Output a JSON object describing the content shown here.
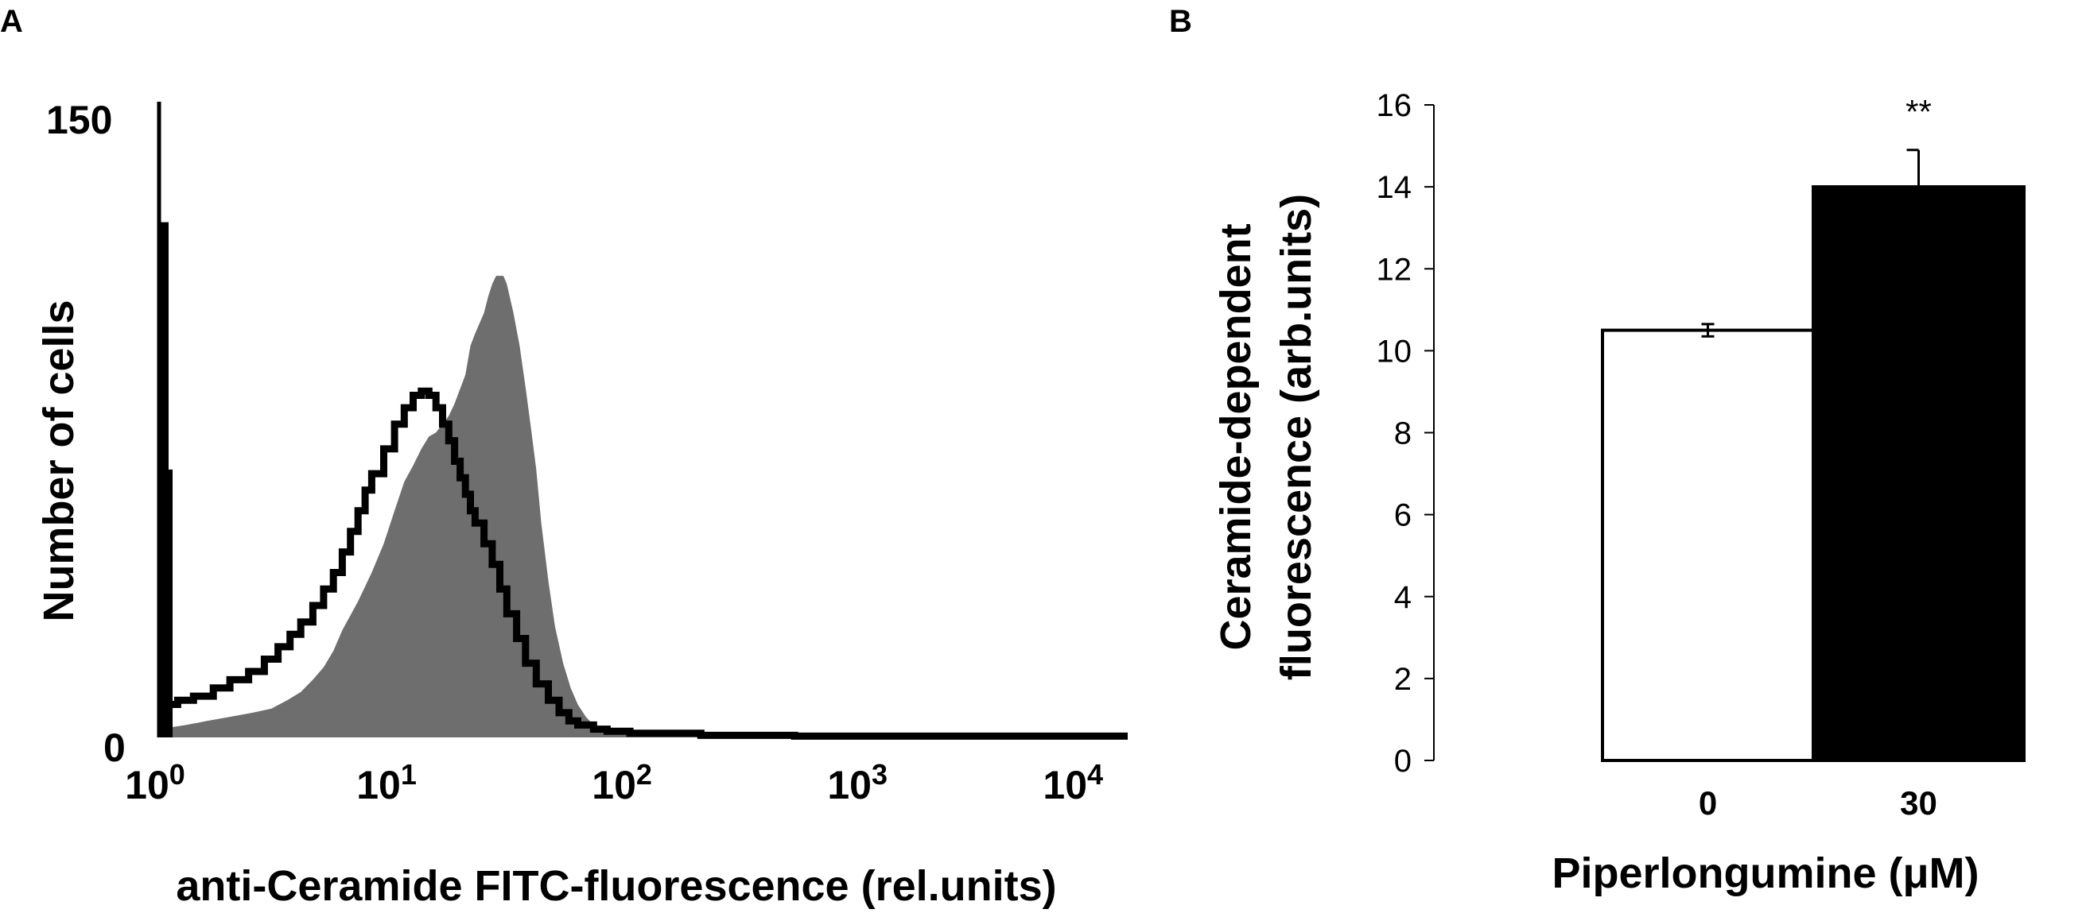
{
  "panels": {
    "A": {
      "letter": "A",
      "chart_data": {
        "type": "area",
        "title": "",
        "xlabel": "anti-Ceramide FITC-fluorescence (rel.units)",
        "ylabel": "Number of cells",
        "xscale": "log",
        "xlim": [
          1,
          13000
        ],
        "ylim": [
          0,
          150
        ],
        "x_ticks": [
          1,
          10,
          100,
          1000,
          10000
        ],
        "x_tick_labels": [
          {
            "base": "10",
            "exp": "0"
          },
          {
            "base": "10",
            "exp": "1"
          },
          {
            "base": "10",
            "exp": "2"
          },
          {
            "base": "10",
            "exp": "3"
          },
          {
            "base": "10",
            "exp": "4"
          }
        ],
        "y_tick_labels": [
          "150",
          "0"
        ],
        "grid": false,
        "legend": "none",
        "series": [
          {
            "style": "filled",
            "color": "#6e6e6e",
            "x": [
              1,
              1.3,
              1.6,
              2,
              2.5,
              3,
              3.5,
              4,
              4.5,
              5,
              5.5,
              6,
              7,
              8,
              9,
              10,
              11,
              12,
              13,
              14,
              15,
              16,
              17,
              18,
              20,
              21,
              22,
              24,
              25,
              26,
              27,
              28,
              29,
              30,
              32,
              34,
              36,
              38,
              40,
              42,
              45,
              48,
              52,
              56,
              60,
              65,
              70,
              80,
              100,
              130,
              200,
              500,
              1000,
              13000
            ],
            "y": [
              2,
              3,
              4,
              5,
              6,
              7,
              9,
              11,
              14,
              17,
              21,
              26,
              33,
              40,
              47,
              55,
              62,
              66,
              70,
              73,
              74,
              76,
              78,
              81,
              88,
              95,
              98,
              103,
              107,
              110,
              112,
              112,
              112,
              110,
              103,
              95,
              85,
              75,
              65,
              52,
              38,
              27,
              18,
              12,
              8,
              5,
              3,
              2,
              1,
              0.5,
              0.3,
              0.2,
              0.2,
              0.2
            ]
          },
          {
            "style": "outline",
            "color": "#000000",
            "x": [
              1,
              1.2,
              1.4,
              1.7,
              2,
              2.4,
              2.8,
              3.2,
              3.6,
              4,
              4.5,
              5,
              5.5,
              6,
              6.5,
              7,
              7.5,
              8,
              9,
              10,
              11,
              12,
              13,
              14,
              15,
              16,
              17,
              18,
              19,
              20,
              21,
              22,
              24,
              26,
              28,
              30,
              33,
              36,
              40,
              45,
              50,
              55,
              60,
              70,
              80,
              100,
              200,
              500,
              1000,
              13000
            ],
            "y": [
              8,
              9,
              10,
              12,
              14,
              16,
              19,
              22,
              25,
              28,
              32,
              36,
              40,
              45,
              50,
              55,
              60,
              64,
              70,
              76,
              80,
              83,
              84,
              83,
              80,
              76,
              72,
              67,
              63,
              59,
              55,
              52,
              47,
              42,
              36,
              30,
              24,
              18,
              13,
              9,
              6,
              4,
              3,
              2,
              1.5,
              1,
              0.5,
              0.3,
              0.3,
              0.3
            ]
          },
          {
            "style": "spike",
            "color": "#000000",
            "x": [
              1,
              1.04
            ],
            "y": [
              125,
              65
            ]
          }
        ]
      }
    },
    "B": {
      "letter": "B",
      "chart_data": {
        "type": "bar",
        "title": "",
        "xlabel": "Piperlongumine (μM)",
        "ylabel_lines": [
          "Ceramide-dependent",
          "fluorescence (arb.units)"
        ],
        "categories": [
          "0",
          "30"
        ],
        "values": [
          10.5,
          14.0
        ],
        "errors": [
          0.15,
          0.9
        ],
        "bar_colors": [
          "#ffffff",
          "#000000"
        ],
        "significance": [
          "",
          "**"
        ],
        "ylim": [
          0,
          16
        ],
        "y_ticks": [
          "0",
          "2",
          "4",
          "6",
          "8",
          "10",
          "12",
          "14",
          "16"
        ],
        "grid": false,
        "legend": "none"
      }
    }
  }
}
